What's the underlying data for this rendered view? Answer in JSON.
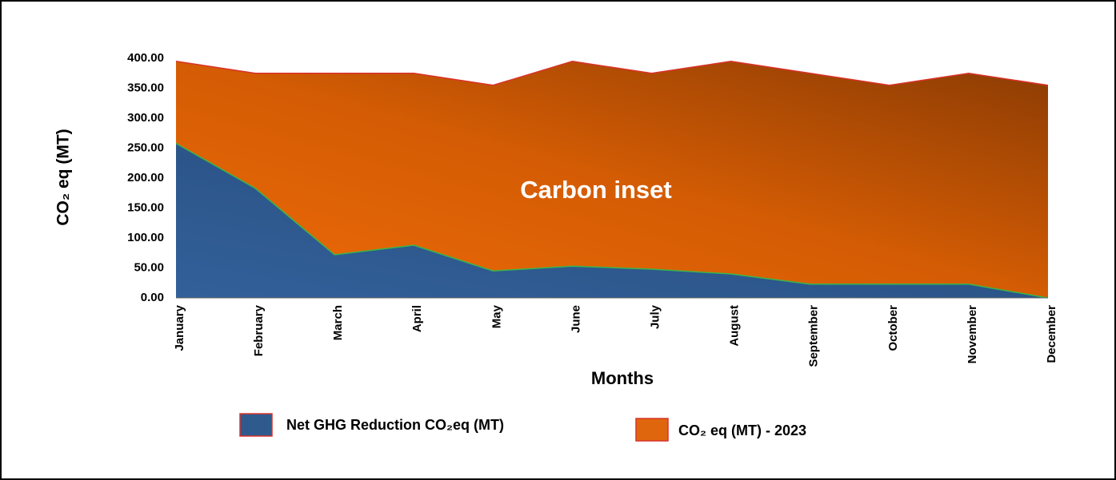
{
  "chart_data": {
    "type": "area",
    "xlabel": "Months",
    "ylabel": "CO₂ eq (MT)",
    "annotation": "Carbon inset",
    "categories": [
      "January",
      "February",
      "March",
      "April",
      "May",
      "June",
      "July",
      "August",
      "September",
      "October",
      "November",
      "December"
    ],
    "series": [
      {
        "name": "CO₂ eq (MT) - 2023",
        "color": "#e0660e",
        "values": [
          395,
          375,
          375,
          375,
          355,
          395,
          375,
          395,
          375,
          355,
          375,
          355
        ]
      },
      {
        "name": "Net GHG Reduction CO₂eq (MT)",
        "color": "#2e5a8e",
        "values": [
          258,
          183,
          72,
          88,
          45,
          53,
          48,
          40,
          23,
          23,
          23,
          0
        ]
      }
    ],
    "ylim": [
      0,
      400
    ],
    "yticks": [
      {
        "value": 0,
        "label": "0.00"
      },
      {
        "value": 50,
        "label": "50.00"
      },
      {
        "value": 100,
        "label": "100.00"
      },
      {
        "value": 150,
        "label": "150.00"
      },
      {
        "value": 200,
        "label": "200.00"
      },
      {
        "value": 250,
        "label": "250.00"
      },
      {
        "value": 300,
        "label": "300.00"
      },
      {
        "value": 350,
        "label": "350.00"
      },
      {
        "value": 400,
        "label": "400.00"
      }
    ]
  }
}
